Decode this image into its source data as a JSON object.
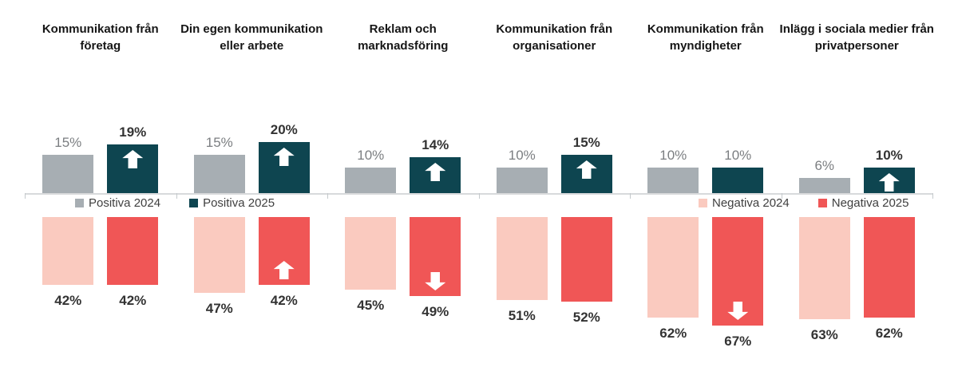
{
  "chart_data": {
    "type": "bar",
    "layout": "diverging columns: Positiva series above x-axis, Negativa series below x-axis, grouped per category",
    "value_suffix": "%",
    "grid": false,
    "legend_position": "middle band between positive and negative sections (Positiva legend left, Negativa legend right)",
    "categories": [
      "Kommunikation från företag",
      "Din egen kommunikation eller arbete",
      "Reklam och marknadsföring",
      "Kommunikation från organisationer",
      "Kommunikation från myndigheter",
      "Inlägg i sociala medier från privatpersoner"
    ],
    "series": [
      {
        "key": "positiva_2024",
        "name": "Positiva 2024",
        "color": "#A7AEB3",
        "values": [
          15,
          15,
          10,
          10,
          10,
          6
        ],
        "arrows": null
      },
      {
        "key": "positiva_2025",
        "name": "Positiva 2025",
        "color": "#0E4550",
        "values": [
          19,
          20,
          14,
          15,
          10,
          10
        ],
        "arrows": [
          "up",
          "up",
          "up",
          "up",
          "none",
          "up"
        ]
      },
      {
        "key": "negativa_2024",
        "name": "Negativa 2024",
        "color": "#FACABF",
        "values": [
          42,
          47,
          45,
          51,
          62,
          63
        ],
        "arrows": null
      },
      {
        "key": "negativa_2025",
        "name": "Negativa 2025",
        "color": "#F05656",
        "values": [
          42,
          42,
          49,
          52,
          67,
          62
        ],
        "arrows": [
          "none",
          "up",
          "down",
          "none",
          "down",
          "none"
        ]
      }
    ],
    "arrow_icon_color": "#FFFFFF",
    "axis_color": "#D8DADC"
  }
}
